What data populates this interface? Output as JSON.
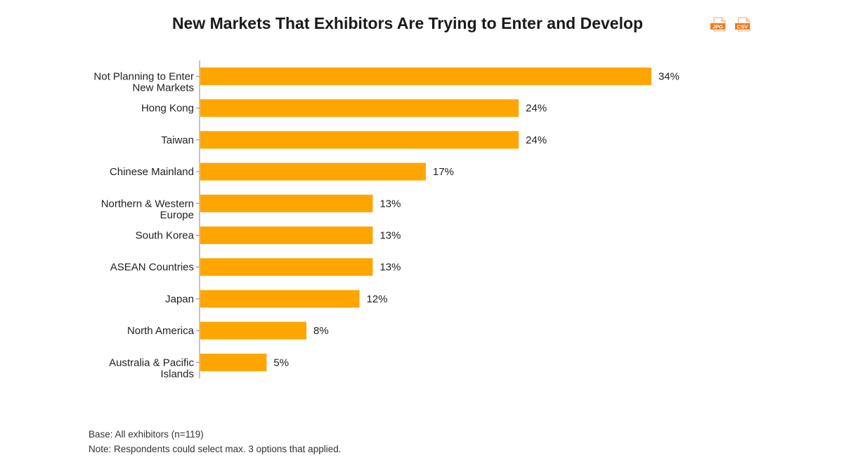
{
  "header": {
    "title": "New Markets That Exhibitors Are Trying to Enter and Develop",
    "downloads": [
      {
        "label": "JPG",
        "icon": "jpg-file-icon"
      },
      {
        "label": "CSV",
        "icon": "csv-file-icon"
      }
    ]
  },
  "colors": {
    "bar": "#FFA500",
    "axis": "#888888",
    "download": "#F07A1E"
  },
  "chart_data": {
    "type": "bar",
    "orientation": "horizontal",
    "title": "New Markets That Exhibitors Are Trying to Enter and Develop",
    "xlabel": "",
    "ylabel": "",
    "unit": "%",
    "xlim": [
      0,
      36
    ],
    "grid": false,
    "categories": [
      "Not Planning to Enter New Markets",
      "Hong Kong",
      "Taiwan",
      "Chinese Mainland",
      "Northern & Western Europe",
      "South Korea",
      "ASEAN Countries",
      "Japan",
      "North America",
      "Australia & Pacific Islands"
    ],
    "category_lines": [
      [
        "Not Planning to Enter",
        "New Markets"
      ],
      [
        "Hong Kong"
      ],
      [
        "Taiwan"
      ],
      [
        "Chinese Mainland"
      ],
      [
        "Northern & Western",
        "Europe"
      ],
      [
        "South Korea"
      ],
      [
        "ASEAN Countries"
      ],
      [
        "Japan"
      ],
      [
        "North America"
      ],
      [
        "Australia & Pacific",
        "Islands"
      ]
    ],
    "values": [
      34,
      24,
      24,
      17,
      13,
      13,
      13,
      12,
      8,
      5
    ],
    "data_labels": [
      "34%",
      "24%",
      "24%",
      "17%",
      "13%",
      "13%",
      "13%",
      "12%",
      "8%",
      "5%"
    ]
  },
  "footnotes": {
    "base": "Base: All exhibitors (n=119)",
    "note": "Note: Respondents could select max. 3 options that applied."
  }
}
